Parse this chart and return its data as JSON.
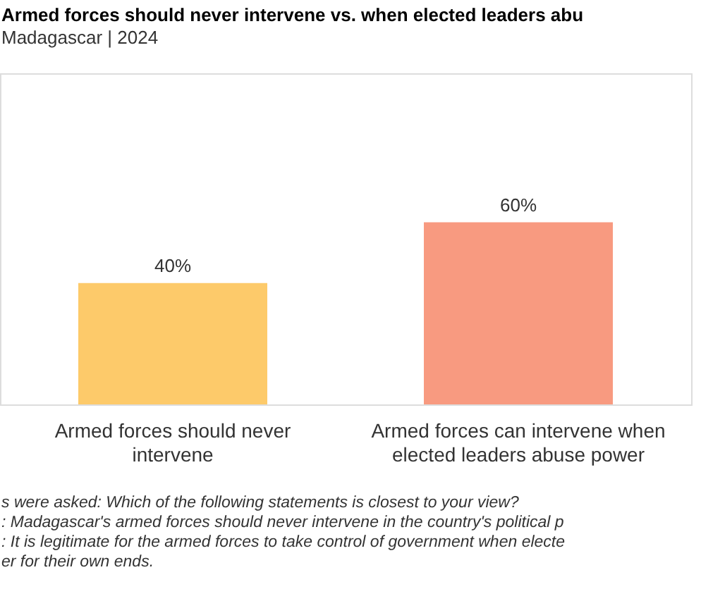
{
  "chart_data": {
    "type": "bar",
    "title": "Armed forces should never intervene vs. when elected leaders abu",
    "subtitle": "Madagascar | 2024",
    "categories": [
      "Armed forces should never intervene",
      "Armed forces can intervene when elected leaders abuse power"
    ],
    "values": [
      40,
      60
    ],
    "colors": [
      "#fdca6a",
      "#f89a80"
    ],
    "data_labels": true,
    "value_labels": [
      "40%",
      "60%"
    ],
    "annotations": [
      "s were asked: Which of the following statements is closest to your view?",
      ": Madagascar's armed forces should never intervene in the country's political p",
      ": It is legitimate for the armed forces to take control of government when electe",
      "er for their own ends."
    ]
  }
}
